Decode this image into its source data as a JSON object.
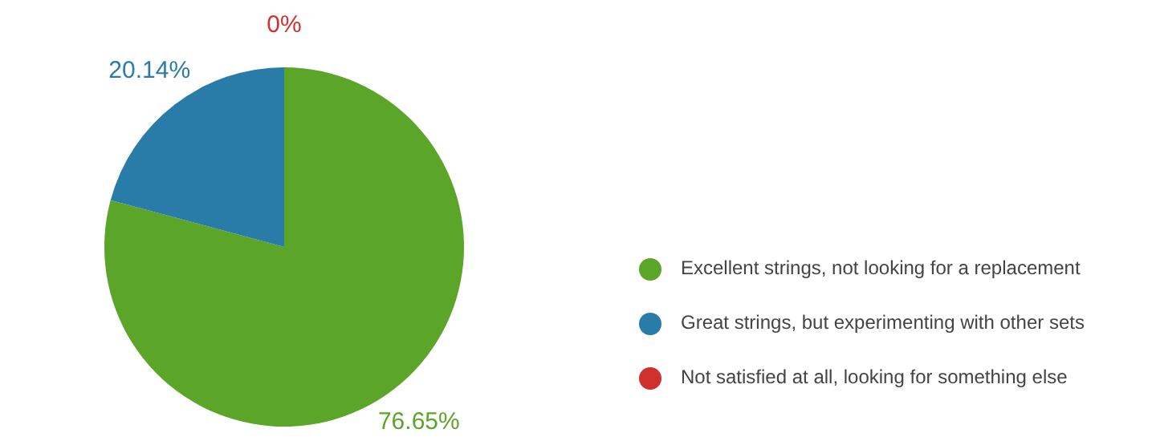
{
  "chart_data": {
    "type": "pie",
    "categories": [
      "Excellent strings, not looking for a replacement",
      "Great strings, but experimenting with other sets",
      "Not satisfied at all, looking for something else"
    ],
    "values": [
      76.65,
      20.14,
      0
    ],
    "colors": [
      "#5ba529",
      "#2a7ca8",
      "#d0312d"
    ],
    "value_labels": [
      "76.65%",
      "20.14%",
      "0%"
    ],
    "legend": "right"
  }
}
